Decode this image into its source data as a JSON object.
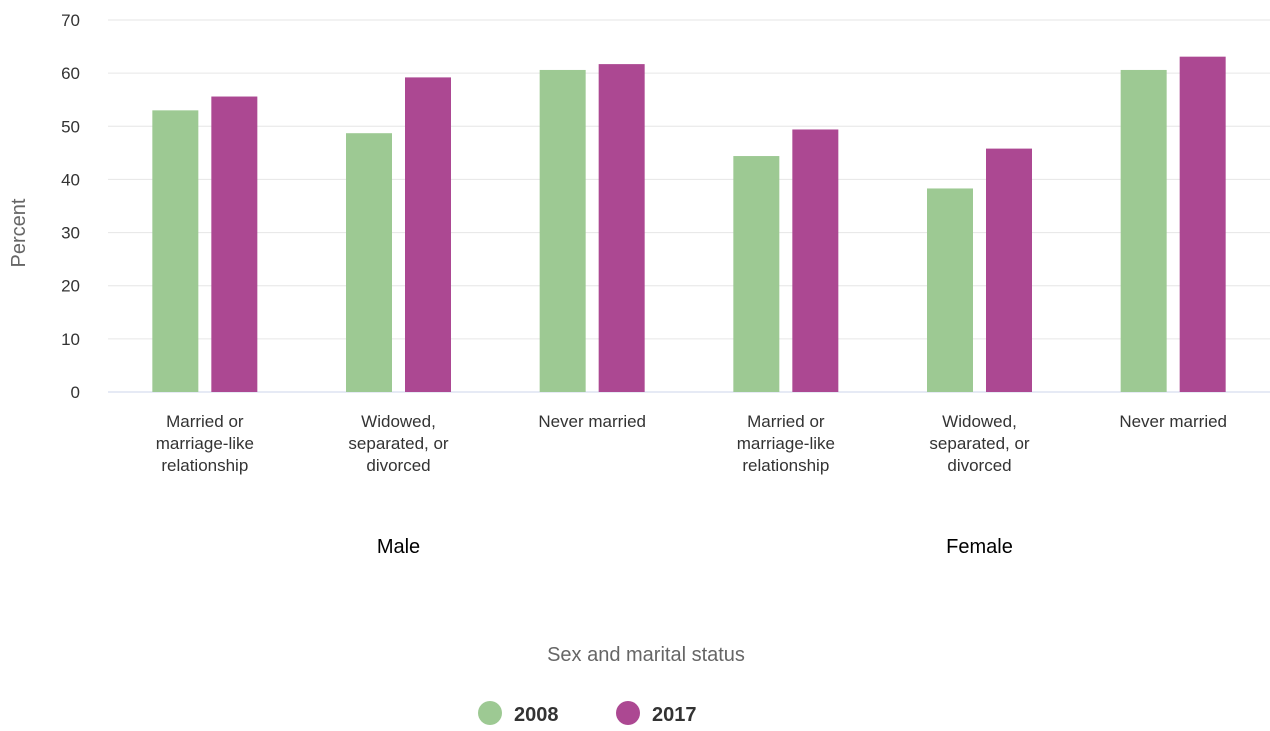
{
  "chart_data": {
    "type": "bar",
    "groups": [
      {
        "label": "Male",
        "categories": [
          [
            "Married or",
            "marriage-like",
            "relationship"
          ],
          [
            "Widowed,",
            "separated, or",
            "divorced"
          ],
          [
            "Never married"
          ]
        ]
      },
      {
        "label": "Female",
        "categories": [
          [
            "Married or",
            "marriage-like",
            "relationship"
          ],
          [
            "Widowed,",
            "separated, or",
            "divorced"
          ],
          [
            "Never married"
          ]
        ]
      }
    ],
    "series": [
      {
        "name": "2008",
        "color": "#9dc993",
        "values": [
          53.0,
          48.7,
          60.6,
          44.4,
          38.3,
          60.6
        ]
      },
      {
        "name": "2017",
        "color": "#ac4892",
        "values": [
          55.6,
          59.2,
          61.7,
          49.4,
          45.8,
          63.1
        ]
      }
    ],
    "xlabel": "Sex and marital status",
    "ylabel": "Percent",
    "ylim": [
      0,
      70
    ],
    "yticks": [
      0,
      10,
      20,
      30,
      40,
      50,
      60,
      70
    ],
    "grid": true,
    "legend_position": "bottom-center"
  }
}
